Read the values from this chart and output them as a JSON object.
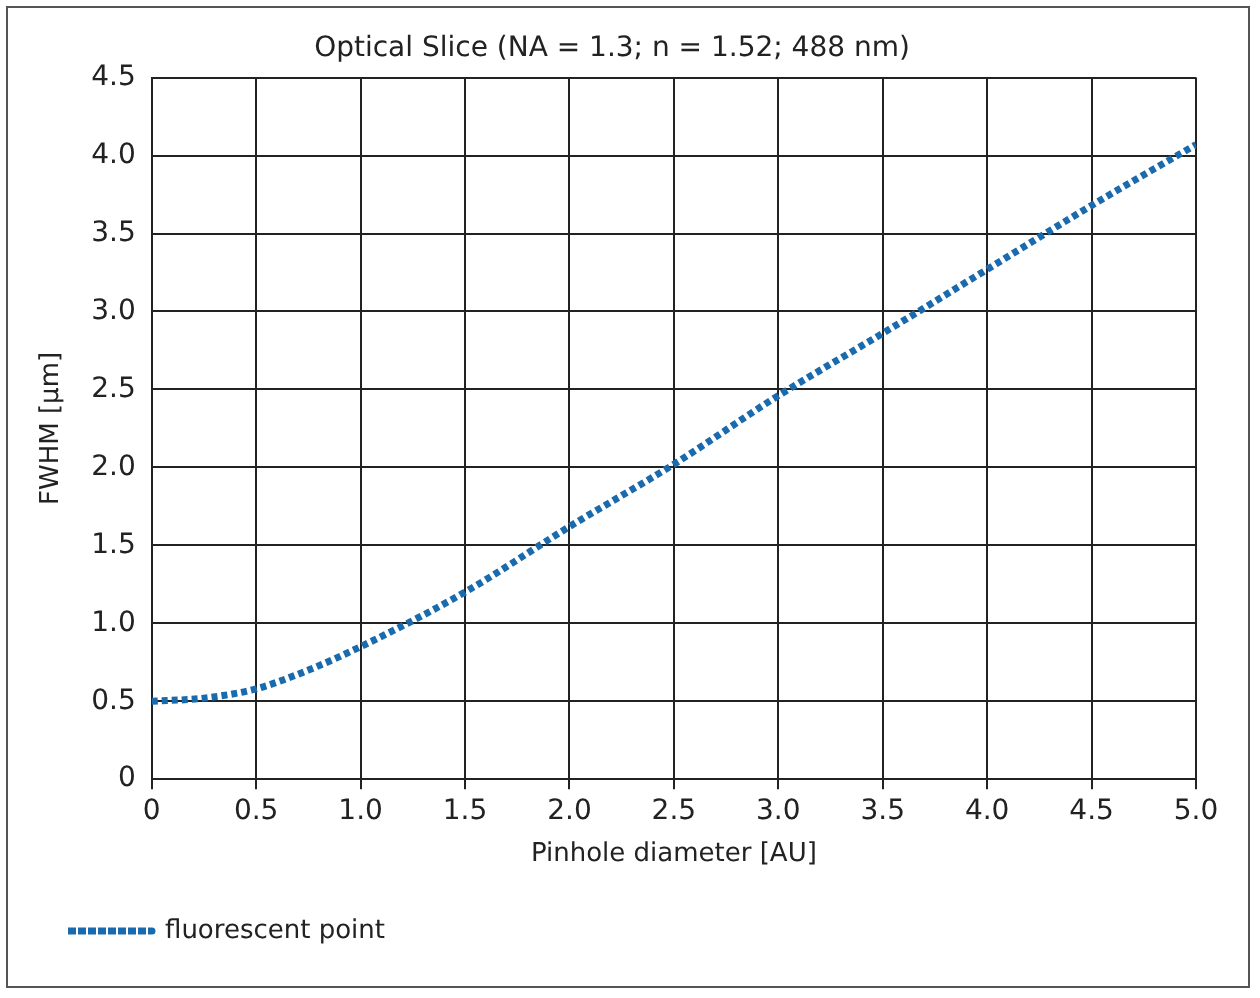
{
  "chart_data": {
    "type": "line",
    "title": "Optical Slice (NA = 1.3; n = 1.52; 488 nm)",
    "xlabel": "Pinhole diameter [AU]",
    "ylabel": "FWHM [µm]",
    "x": [
      0,
      0.25,
      0.5,
      0.75,
      1.0,
      1.5,
      2.0,
      2.5,
      3.0,
      3.5,
      4.0,
      4.5,
      5.0
    ],
    "series": [
      {
        "name": "fluorescent point",
        "color": "#1a6aae",
        "values": [
          0.5,
          0.52,
          0.58,
          0.7,
          0.85,
          1.2,
          1.62,
          2.02,
          2.46,
          2.86,
          3.27,
          3.68,
          4.07
        ]
      }
    ],
    "xlim": [
      0,
      5
    ],
    "xticks": [
      0,
      0.5,
      {
        "value": 1,
        "label": "1.0"
      },
      1.5,
      {
        "value": 2,
        "label": "2.0"
      },
      2.5,
      {
        "value": 3,
        "label": "3.0"
      },
      3.5,
      {
        "value": 4,
        "label": "4.0"
      },
      4.5,
      {
        "value": 5,
        "label": "5.0"
      }
    ],
    "ylim": [
      0,
      4.5
    ],
    "yticks": [
      0,
      0.5,
      {
        "value": 1,
        "label": "1.0"
      },
      1.5,
      {
        "value": 2,
        "label": "2.0"
      },
      2.5,
      {
        "value": 3,
        "label": "3.0"
      },
      3.5,
      {
        "value": 4,
        "label": "4.0"
      },
      4.5
    ],
    "grid": true,
    "legend": "bottom left",
    "marker": "none",
    "line_style": "dotted"
  }
}
